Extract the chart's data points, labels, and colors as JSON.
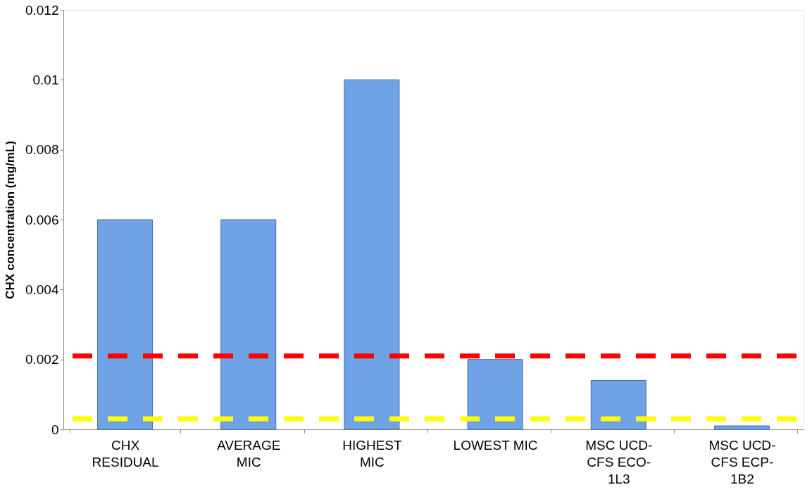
{
  "chart_data": {
    "type": "bar",
    "ylabel": "CHX concentration (mg/mL)",
    "categories": [
      "CHX RESIDUAL",
      "AVERAGE MIC",
      "HIGHEST MIC",
      "LOWEST MIC",
      "MSC UCD-CFS ECO-1L3",
      "MSC UCD-CFS ECP-1B2"
    ],
    "values": [
      0.006,
      0.006,
      0.01,
      0.002,
      0.0014,
      0.0001
    ],
    "color": "#6fa3e6",
    "ylim": [
      0,
      0.012
    ],
    "yticks": [
      0,
      0.002,
      0.004,
      0.006,
      0.008,
      0.01,
      0.012
    ],
    "grid": false,
    "ref_lines": [
      {
        "axis": "y",
        "value": 0.0021,
        "color": "#ff0000",
        "line_style": "dashed"
      },
      {
        "axis": "y",
        "value": 0.0003,
        "color": "#ffff00",
        "line_style": "dashed"
      }
    ]
  }
}
